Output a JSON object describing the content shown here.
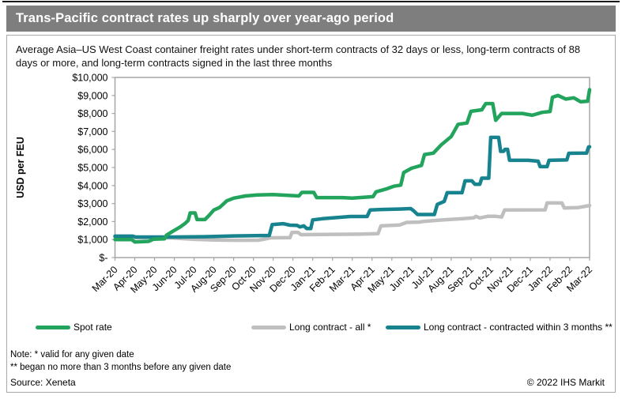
{
  "header": {
    "title": "Trans-Pacific contract rates up sharply over year-ago period"
  },
  "subtitle": "Average Asia–US West Coast container freight rates under short-term contracts of 32 days or less, long-term contracts of 88 days or more, and long-term contracts signed in the last three months",
  "footer": {
    "note_line1": "Note: * valid for any given date",
    "note_line2": "** began no more than 3 months before any given date",
    "source": "Source: Xeneta",
    "copyright": "© 2022 IHS Markit"
  },
  "colors": {
    "title_bar": "#7e7e7e",
    "axis": "#a6a6a6",
    "spot": "#22a45d",
    "long_all": "#bfbfbf",
    "long_3m": "#17838e"
  },
  "chart_data": {
    "type": "line",
    "title": "Trans-Pacific contract rates up sharply over year-ago period",
    "xlabel": "",
    "ylabel": "USD per FEU",
    "ylim": [
      0,
      10000
    ],
    "y_tick_step": 1000,
    "y_tick_labels": [
      "$-",
      "$1,000",
      "$2,000",
      "$3,000",
      "$4,000",
      "$5,000",
      "$6,000",
      "$7,000",
      "$8,000",
      "$9,000",
      "$10,000"
    ],
    "x_categories": [
      "Mar-20",
      "Apr-20",
      "May-20",
      "Jun-20",
      "Jul-20",
      "Aug-20",
      "Sep-20",
      "Oct-20",
      "Nov-20",
      "Dec-20",
      "Jan-21",
      "Feb-21",
      "Mar-21",
      "Apr-21",
      "May-21",
      "Jun-21",
      "Jul-21",
      "Aug-21",
      "Sep-21",
      "Oct-21",
      "Nov-21",
      "Dec-21",
      "Jan-22",
      "Feb-22",
      "Mar-22"
    ],
    "points_x_unit": "month index into x_categories (fractional = intra-month)",
    "grid": false,
    "legend_position": "bottom",
    "series": [
      {
        "name": "Spot rate",
        "color_key": "spot",
        "points": [
          [
            0,
            1000
          ],
          [
            0.85,
            1000
          ],
          [
            1.0,
            870
          ],
          [
            1.7,
            900
          ],
          [
            1.95,
            1020
          ],
          [
            2.5,
            1040
          ],
          [
            2.6,
            1240
          ],
          [
            2.95,
            1480
          ],
          [
            3.3,
            1700
          ],
          [
            3.55,
            1900
          ],
          [
            3.7,
            2060
          ],
          [
            3.8,
            2480
          ],
          [
            4.05,
            2480
          ],
          [
            4.15,
            2110
          ],
          [
            4.55,
            2110
          ],
          [
            4.75,
            2330
          ],
          [
            5.0,
            2640
          ],
          [
            5.3,
            2790
          ],
          [
            5.65,
            3150
          ],
          [
            6.0,
            3300
          ],
          [
            6.6,
            3420
          ],
          [
            7.2,
            3480
          ],
          [
            8.0,
            3500
          ],
          [
            9.3,
            3420
          ],
          [
            9.45,
            3620
          ],
          [
            10.05,
            3620
          ],
          [
            10.2,
            3330
          ],
          [
            11.5,
            3330
          ],
          [
            12.0,
            3300
          ],
          [
            13.05,
            3380
          ],
          [
            13.2,
            3650
          ],
          [
            13.75,
            3820
          ],
          [
            14.1,
            3960
          ],
          [
            14.45,
            4020
          ],
          [
            14.6,
            4720
          ],
          [
            15.0,
            4960
          ],
          [
            15.5,
            5120
          ],
          [
            15.65,
            5720
          ],
          [
            16.1,
            5800
          ],
          [
            16.5,
            6260
          ],
          [
            17.0,
            6720
          ],
          [
            17.35,
            7400
          ],
          [
            17.8,
            7470
          ],
          [
            18.0,
            8120
          ],
          [
            18.55,
            8200
          ],
          [
            18.75,
            8550
          ],
          [
            19.1,
            8550
          ],
          [
            19.25,
            7620
          ],
          [
            19.55,
            8000
          ],
          [
            20.6,
            8000
          ],
          [
            21.1,
            7900
          ],
          [
            21.6,
            8060
          ],
          [
            22.0,
            8110
          ],
          [
            22.12,
            8900
          ],
          [
            22.4,
            9000
          ],
          [
            22.8,
            8800
          ],
          [
            23.2,
            8870
          ],
          [
            23.55,
            8650
          ],
          [
            23.9,
            8680
          ],
          [
            24,
            9320
          ]
        ]
      },
      {
        "name": "Long contract - all *",
        "color_key": "long_all",
        "points": [
          [
            0,
            1150
          ],
          [
            0.6,
            1120
          ],
          [
            1.1,
            1100
          ],
          [
            2.9,
            1090
          ],
          [
            3.5,
            1050
          ],
          [
            4.1,
            1010
          ],
          [
            5.0,
            980
          ],
          [
            6.2,
            960
          ],
          [
            7.25,
            965
          ],
          [
            7.5,
            1015
          ],
          [
            7.85,
            1095
          ],
          [
            8.85,
            1105
          ],
          [
            8.95,
            1400
          ],
          [
            9.25,
            1400
          ],
          [
            9.4,
            1270
          ],
          [
            11.0,
            1290
          ],
          [
            12.3,
            1300
          ],
          [
            13.3,
            1330
          ],
          [
            13.45,
            1760
          ],
          [
            14.4,
            1810
          ],
          [
            14.75,
            1950
          ],
          [
            15.4,
            1970
          ],
          [
            15.6,
            2010
          ],
          [
            16.6,
            2090
          ],
          [
            17.6,
            2160
          ],
          [
            18.15,
            2210
          ],
          [
            18.25,
            2290
          ],
          [
            18.45,
            2200
          ],
          [
            18.85,
            2290
          ],
          [
            19.25,
            2290
          ],
          [
            19.55,
            2250
          ],
          [
            19.7,
            2640
          ],
          [
            21.75,
            2650
          ],
          [
            21.85,
            3030
          ],
          [
            22.6,
            3030
          ],
          [
            22.72,
            2750
          ],
          [
            23.4,
            2770
          ],
          [
            24,
            2890
          ]
        ]
      },
      {
        "name": "Long contract - contracted within 3 months **",
        "color_key": "long_3m",
        "points": [
          [
            0,
            1190
          ],
          [
            0.9,
            1190
          ],
          [
            1.05,
            1140
          ],
          [
            3.0,
            1140
          ],
          [
            4.5,
            1160
          ],
          [
            6.0,
            1200
          ],
          [
            7.8,
            1230
          ],
          [
            7.95,
            1830
          ],
          [
            8.5,
            1880
          ],
          [
            8.85,
            1800
          ],
          [
            9.2,
            1790
          ],
          [
            9.35,
            1700
          ],
          [
            9.55,
            1760
          ],
          [
            9.7,
            1610
          ],
          [
            9.9,
            1610
          ],
          [
            10.0,
            2090
          ],
          [
            10.5,
            2160
          ],
          [
            11.2,
            2220
          ],
          [
            11.9,
            2280
          ],
          [
            12.75,
            2280
          ],
          [
            12.9,
            2640
          ],
          [
            13.5,
            2670
          ],
          [
            14.6,
            2700
          ],
          [
            14.95,
            2720
          ],
          [
            15.1,
            2600
          ],
          [
            15.3,
            2390
          ],
          [
            16.15,
            2390
          ],
          [
            16.3,
            2950
          ],
          [
            16.65,
            3120
          ],
          [
            16.8,
            3600
          ],
          [
            17.55,
            3600
          ],
          [
            17.7,
            4260
          ],
          [
            18.05,
            4260
          ],
          [
            18.2,
            4070
          ],
          [
            18.45,
            4070
          ],
          [
            18.55,
            4410
          ],
          [
            18.9,
            4410
          ],
          [
            19.0,
            6670
          ],
          [
            19.4,
            6670
          ],
          [
            19.5,
            5900
          ],
          [
            19.65,
            5900
          ],
          [
            19.72,
            6010
          ],
          [
            19.85,
            6010
          ],
          [
            19.95,
            5400
          ],
          [
            20.9,
            5400
          ],
          [
            21.4,
            5350
          ],
          [
            21.5,
            5050
          ],
          [
            21.85,
            5050
          ],
          [
            21.95,
            5400
          ],
          [
            22.85,
            5420
          ],
          [
            22.95,
            5790
          ],
          [
            23.85,
            5800
          ],
          [
            23.95,
            6140
          ],
          [
            24,
            6150
          ]
        ]
      }
    ]
  }
}
